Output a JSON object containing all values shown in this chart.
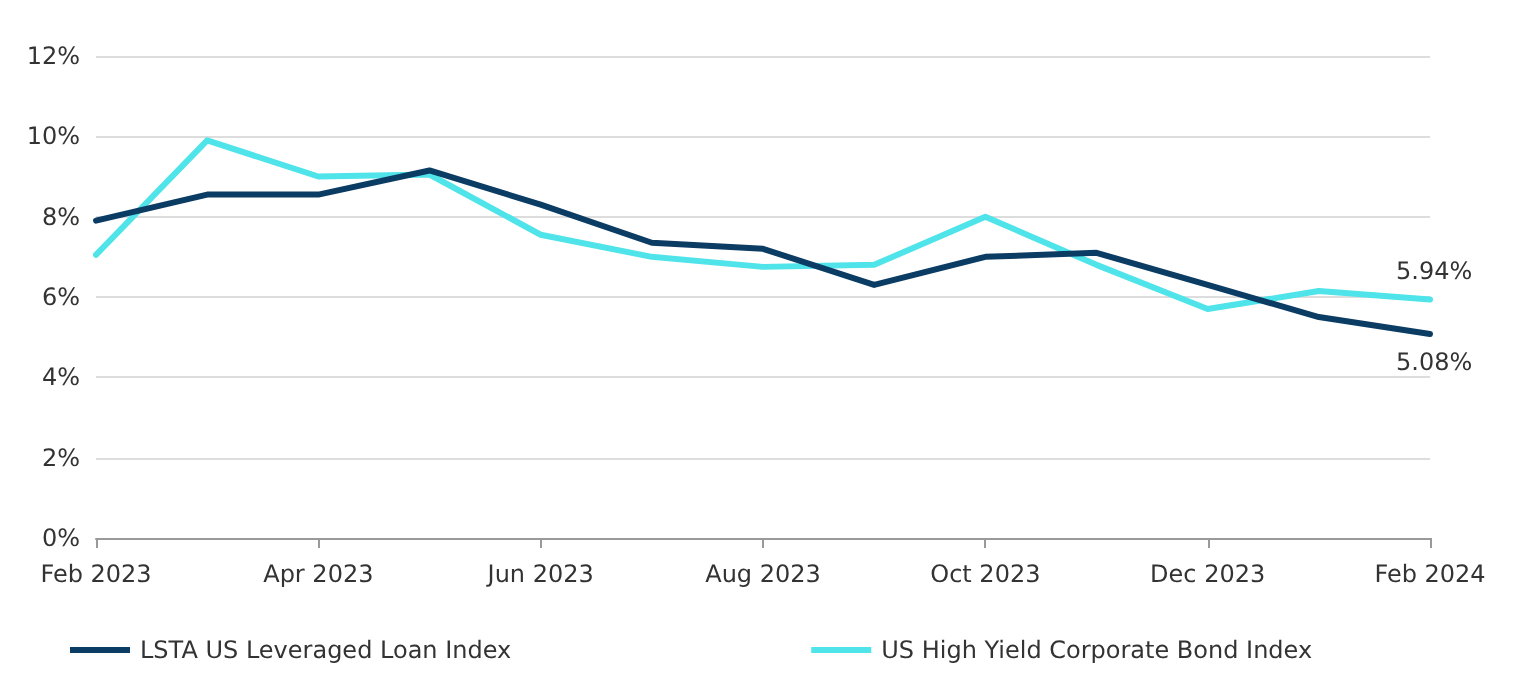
{
  "chart_data": {
    "type": "line",
    "categories": [
      "Feb 2023",
      null,
      "Apr 2023",
      null,
      "Jun 2023",
      null,
      "Aug 2023",
      null,
      "Oct 2023",
      null,
      "Dec 2023",
      null,
      "Feb 2024"
    ],
    "series": [
      {
        "name": "LSTA US Leveraged Loan Index",
        "color": "#0b3c64",
        "values": [
          7.9,
          8.55,
          8.55,
          9.15,
          8.3,
          7.35,
          7.2,
          6.3,
          7.0,
          7.1,
          6.3,
          5.5,
          5.08
        ]
      },
      {
        "name": "US High Yield Corporate Bond Index",
        "color": "#4fe3ea",
        "values": [
          7.05,
          9.9,
          9.0,
          9.05,
          7.55,
          7.0,
          6.75,
          6.8,
          8.0,
          6.8,
          5.7,
          6.15,
          5.94
        ]
      }
    ],
    "ylim": [
      0,
      12
    ],
    "yticks": [
      {
        "value": 0,
        "label": "0%"
      },
      {
        "value": 2,
        "label": "2%"
      },
      {
        "value": 4,
        "label": "4%"
      },
      {
        "value": 6,
        "label": "6%"
      },
      {
        "value": 8,
        "label": "8%"
      },
      {
        "value": 10,
        "label": "10%"
      },
      {
        "value": 12,
        "label": "12%"
      }
    ],
    "annotations": [
      {
        "text": "5.94%",
        "x": "Feb 2024",
        "y": 5.94
      },
      {
        "text": "5.08%",
        "x": "Feb 2024",
        "y": 5.08
      }
    ],
    "grid": "y",
    "legend": "bottom",
    "marker": "none",
    "line_style": "solid"
  }
}
